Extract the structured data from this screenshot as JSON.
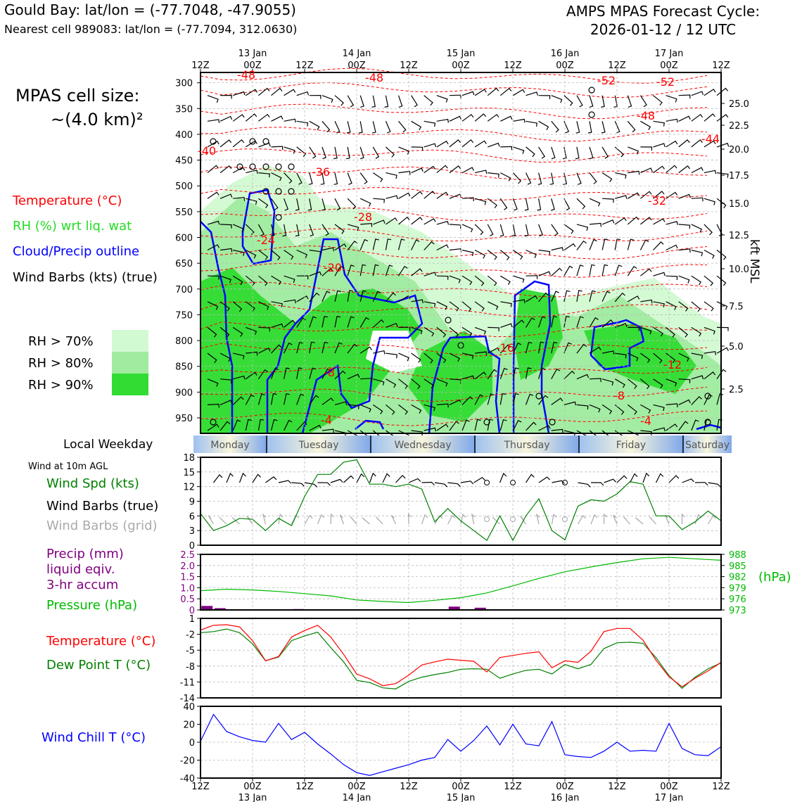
{
  "header": {
    "station_title": "Gould Bay: lat/lon = (-77.7048, -47.9055)",
    "nearest_cell": "Nearest cell 989083: lat/lon = (-77.7094, 312.0630)",
    "forecast_title": "AMPS MPAS Forecast Cycle:",
    "forecast_cycle": "2026-01-12 / 12 UTC"
  },
  "cell_size": {
    "line1": "MPAS cell size:",
    "line2": "~(4.0 km)²"
  },
  "legend": {
    "temperature": "Temperature (°C)",
    "rh": "RH (%) wrt liq. wat",
    "cloud": "Cloud/Precip outline",
    "wind": "Wind Barbs (kts) (true)",
    "rh70": "RH > 70%",
    "rh80": "RH > 80%",
    "rh90": "RH > 90%"
  },
  "colors": {
    "temperature": "#ff0000",
    "rh_label": "#22dd22",
    "cloud": "#0000ff",
    "rh70": "#d2fad2",
    "rh80": "#a0eba0",
    "rh90": "#32dc32",
    "wind_speed": "#008000",
    "dew_point": "#008000",
    "pressure": "#00bb00",
    "precip": "#800080",
    "wind_chill": "#0000ff",
    "grid_barbs": "#aaaaaa"
  },
  "time_axis": {
    "hour_labels": [
      "12Z",
      "00Z",
      "12Z",
      "00Z",
      "12Z",
      "00Z",
      "12Z",
      "00Z",
      "12Z",
      "00Z",
      "12Z"
    ],
    "date_labels": [
      "13 Jan",
      "14 Jan",
      "15 Jan",
      "16 Jan",
      "17 Jan"
    ],
    "weekdays": [
      "Monday",
      "Tuesday",
      "Wednesday",
      "Thursday",
      "Friday",
      "Saturday"
    ],
    "weekday_label": "Local Weekday"
  },
  "chart_data": [
    {
      "type": "heatmap",
      "name": "Time-height cross section",
      "y_axis": "Pressure (hPa)",
      "yticks": [
        300,
        350,
        400,
        450,
        500,
        550,
        600,
        650,
        700,
        750,
        800,
        850,
        900,
        950
      ],
      "ylim": [
        980,
        280
      ],
      "right_axis_label": "kft MSL",
      "right_ticks": [
        "25.0",
        "22.5",
        "20.0",
        "17.5",
        "15.0",
        "12.5",
        "10.0",
        "7.5",
        "5.0",
        "2.5"
      ],
      "temperature_contour_labels": [
        "-48",
        "-48",
        "-52",
        "-52",
        "-48",
        "-44",
        "-40",
        "-36",
        "-32",
        "-28",
        "-24",
        "-20",
        "-16",
        "-12",
        "-8",
        "-8",
        "-4",
        "-4"
      ]
    },
    {
      "type": "line",
      "name": "Wind at 10m AGL",
      "title": "Wind at 10m AGL",
      "series_labels": [
        "Wind Spd (kts)",
        "Wind Barbs (true)",
        "Wind Barbs (grid)"
      ],
      "ylim": [
        0,
        18
      ],
      "yticks": [
        "0",
        "3",
        "6",
        "9",
        "12",
        "15",
        "18"
      ],
      "x_hours": [
        0,
        3,
        6,
        9,
        12,
        15,
        18,
        21,
        24,
        27,
        30,
        33,
        36,
        39,
        42,
        45,
        48,
        51,
        54,
        57,
        60,
        63,
        66,
        69,
        72,
        75,
        78,
        81,
        84,
        87,
        90,
        93,
        96,
        99,
        102,
        105,
        108,
        111,
        114,
        117,
        120
      ],
      "values": [
        6.5,
        3,
        4,
        5.5,
        5.3,
        3,
        5.5,
        4,
        10,
        14.5,
        14.5,
        17,
        17.5,
        12.5,
        12.5,
        12,
        12.5,
        11.5,
        4.8,
        7.5,
        5,
        3,
        1,
        6,
        1,
        6,
        9.5,
        3,
        1.1,
        8,
        9.3,
        9,
        10.5,
        13,
        12.5,
        6,
        6,
        3.2,
        4.8,
        7,
        5
      ]
    },
    {
      "type": "bar",
      "name": "Precip and pressure",
      "series_labels": [
        "Precip (mm)",
        "liquid eqiv.",
        "3-hr accum",
        "Pressure (hPa)"
      ],
      "precip_ylim": [
        0,
        2.5
      ],
      "precip_yticks": [
        "0",
        "0.5",
        "1.0",
        "1.5",
        "2.0",
        "2.5"
      ],
      "pressure_ylim": [
        973,
        988
      ],
      "pressure_yticks": [
        "973",
        "976",
        "979",
        "982",
        "985",
        "988"
      ],
      "pressure_unit": "(hPa)",
      "x_hours": [
        0,
        6,
        12,
        18,
        24,
        30,
        36,
        42,
        48,
        54,
        60,
        66,
        72,
        78,
        84,
        90,
        96,
        102,
        108,
        114,
        120
      ],
      "pressure": [
        978.2,
        978.6,
        978.4,
        978.0,
        977.4,
        976.8,
        975.7,
        975.3,
        975.0,
        975.6,
        976.3,
        977.6,
        979.5,
        981.5,
        983.3,
        984.6,
        985.8,
        986.8,
        987.2,
        986.8,
        986.4
      ],
      "precip_hours": [
        1.5,
        4.5,
        22.5,
        58.5,
        64.5
      ],
      "precip": [
        0.18,
        0.08,
        0.04,
        0.15,
        0.1
      ]
    },
    {
      "type": "line",
      "name": "Temperature and dew point",
      "series_labels": [
        "Temperature (°C)",
        "Dew Point T (°C)"
      ],
      "ylim": [
        -14,
        1
      ],
      "yticks": [
        "1",
        "-2",
        "-5",
        "-8",
        "-11",
        "-14"
      ],
      "x_hours": [
        0,
        3,
        6,
        9,
        12,
        15,
        18,
        21,
        24,
        27,
        30,
        33,
        36,
        39,
        42,
        45,
        48,
        51,
        54,
        57,
        60,
        63,
        66,
        69,
        72,
        75,
        78,
        81,
        84,
        87,
        90,
        93,
        96,
        99,
        102,
        105,
        108,
        111,
        114,
        117,
        120
      ],
      "temperature": [
        -1.2,
        -0.3,
        -0.2,
        -0.6,
        -3.2,
        -7,
        -6.2,
        -2.5,
        -1.3,
        -0.3,
        -2.5,
        -5.8,
        -9.5,
        -10.4,
        -11.7,
        -11.3,
        -9.7,
        -7.8,
        -7.2,
        -6.7,
        -6.9,
        -7.1,
        -9.1,
        -6.4,
        -6,
        -5.6,
        -5.3,
        -8.3,
        -7,
        -7.3,
        -5.2,
        -1.5,
        -0.9,
        -0.9,
        -3.1,
        -6.9,
        -10,
        -11.9,
        -10.3,
        -8.9,
        -7.3
      ],
      "dew_point": [
        -1.7,
        -1.5,
        -1,
        -1.7,
        -3.8,
        -7,
        -6.3,
        -3.2,
        -2.3,
        -1.6,
        -4.5,
        -7.2,
        -10.7,
        -11.1,
        -12.1,
        -12.3,
        -10.9,
        -10.1,
        -9.6,
        -9.2,
        -8.6,
        -8.5,
        -8.6,
        -10.3,
        -9.5,
        -8.8,
        -8.6,
        -9.5,
        -7.7,
        -8.5,
        -7.7,
        -4.7,
        -3.6,
        -3.5,
        -3.7,
        -6.4,
        -9.8,
        -12.2,
        -10.1,
        -8.5,
        -7.4
      ]
    },
    {
      "type": "line",
      "name": "Wind chill",
      "series_labels": [
        "Wind Chill T (°C)"
      ],
      "ylim": [
        -40,
        40
      ],
      "yticks": [
        "40",
        "20",
        "0",
        "-20",
        "-40"
      ],
      "x_hours": [
        0,
        3,
        6,
        9,
        12,
        15,
        18,
        21,
        24,
        27,
        30,
        33,
        36,
        39,
        42,
        45,
        48,
        51,
        54,
        57,
        60,
        63,
        66,
        69,
        72,
        75,
        78,
        81,
        84,
        87,
        90,
        93,
        96,
        99,
        102,
        105,
        108,
        111,
        114,
        117,
        120
      ],
      "values": [
        1,
        31,
        12,
        6,
        2,
        0,
        21,
        3,
        11,
        -2,
        -13,
        -25,
        -34,
        -37,
        -33,
        -29,
        -25,
        -20,
        -17,
        3,
        -10,
        2,
        18,
        -3,
        20,
        -2,
        -4,
        23,
        -14,
        -16,
        -17,
        -10,
        0,
        -10,
        -9,
        -10,
        21,
        -7,
        -14,
        -15,
        -5
      ]
    }
  ]
}
